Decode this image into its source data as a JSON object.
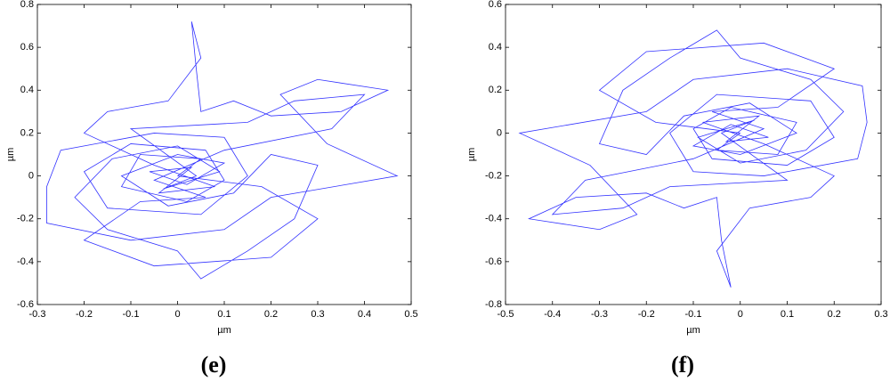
{
  "chart_data": [
    {
      "type": "line",
      "caption": "(e)",
      "x_label": "µm",
      "y_label": "µm",
      "xlim": [
        -0.3,
        0.5
      ],
      "ylim": [
        -0.6,
        0.8
      ],
      "xticks": [
        -0.3,
        -0.2,
        -0.1,
        0,
        0.1,
        0.2,
        0.3,
        0.4,
        0.5
      ],
      "yticks": [
        -0.6,
        -0.4,
        -0.2,
        0,
        0.2,
        0.4,
        0.6,
        0.8
      ],
      "series": [
        {
          "color": "#3333ff",
          "x": [
            0,
            0.05,
            -0.08,
            -0.12,
            0.02,
            0.1,
            0.06,
            -0.1,
            -0.2,
            -0.15,
            0.05,
            0.15,
            0.1,
            -0.05,
            -0.25,
            -0.28,
            -0.28,
            -0.1,
            0.1,
            0.2,
            0.47,
            0.32,
            0.22,
            0.3,
            0.45,
            0.35,
            0.2,
            0.12,
            0.05,
            0.04,
            0.03,
            0.05,
            -0.02,
            -0.15,
            -0.2,
            -0.05,
            0.08,
            -0.04,
            0.03,
            -0.06,
            0.02,
            0.1,
            0,
            -0.12,
            -0.02,
            0.12,
            0.2,
            0.3,
            0.25,
            0.15,
            0.05,
            0,
            -0.15,
            -0.22,
            -0.14,
            0,
            0.09,
            -0.03,
            0.04,
            -0.1,
            0.15,
            0.25,
            0.4,
            0.33,
            0.1,
            -0.05,
            0.06,
            -0.08,
            -0.2,
            -0.05,
            0.2,
            0.3,
            0.18,
            0
          ],
          "values": [
            0,
            0.08,
            0.1,
            -0.05,
            -0.12,
            -0.02,
            0.12,
            0.15,
            0.02,
            -0.15,
            -0.18,
            0,
            0.18,
            0.2,
            0.12,
            -0.05,
            -0.22,
            -0.3,
            -0.25,
            -0.1,
            0,
            0.15,
            0.38,
            0.45,
            0.4,
            0.3,
            0.28,
            0.35,
            0.3,
            0.5,
            0.72,
            0.55,
            0.35,
            0.3,
            0.2,
            0.05,
            -0.05,
            -0.08,
            0.04,
            0.02,
            -0.04,
            0.06,
            0.1,
            0,
            -0.14,
            -0.08,
            0.1,
            0.05,
            -0.2,
            -0.35,
            -0.48,
            -0.35,
            -0.25,
            -0.1,
            0.08,
            0.14,
            0.02,
            -0.06,
            0,
            0.22,
            0.25,
            0.35,
            0.38,
            0.22,
            0.12,
            -0.02,
            -0.1,
            -0.12,
            -0.3,
            -0.42,
            -0.38,
            -0.2,
            -0.05,
            0
          ]
        }
      ]
    },
    {
      "type": "line",
      "caption": "(f)",
      "x_label": "µm",
      "y_label": "µm",
      "xlim": [
        -0.5,
        0.3
      ],
      "ylim": [
        -0.8,
        0.6
      ],
      "xticks": [
        -0.5,
        -0.4,
        -0.3,
        -0.2,
        -0.1,
        0,
        0.1,
        0.2,
        0.3
      ],
      "yticks": [
        -0.8,
        -0.6,
        -0.4,
        -0.2,
        0,
        0.2,
        0.4,
        0.6
      ],
      "series": [
        {
          "color": "#3333ff",
          "x": [
            0,
            -0.05,
            0.08,
            0.12,
            -0.02,
            -0.1,
            -0.06,
            0.1,
            0.2,
            0.15,
            -0.05,
            -0.15,
            -0.1,
            0.05,
            0.25,
            0.27,
            0.26,
            0.1,
            -0.1,
            -0.2,
            -0.47,
            -0.32,
            -0.22,
            -0.3,
            -0.45,
            -0.35,
            -0.2,
            -0.12,
            -0.05,
            -0.04,
            -0.02,
            -0.05,
            0.02,
            0.15,
            0.2,
            0.05,
            -0.08,
            0.04,
            -0.03,
            0.06,
            -0.02,
            -0.1,
            0,
            0.12,
            0.02,
            -0.12,
            -0.2,
            -0.3,
            -0.25,
            -0.15,
            -0.05,
            0,
            0.15,
            0.22,
            0.14,
            0,
            -0.09,
            0.03,
            -0.04,
            0.1,
            -0.15,
            -0.25,
            -0.4,
            -0.33,
            -0.1,
            0.05,
            -0.06,
            0.08,
            0.2,
            0.05,
            -0.2,
            -0.3,
            -0.18,
            0
          ],
          "values": [
            0,
            -0.08,
            -0.1,
            0.05,
            0.12,
            0.02,
            -0.12,
            -0.15,
            -0.02,
            0.15,
            0.18,
            0,
            -0.18,
            -0.2,
            -0.12,
            0.05,
            0.22,
            0.3,
            0.25,
            0.1,
            0,
            -0.15,
            -0.38,
            -0.45,
            -0.4,
            -0.3,
            -0.28,
            -0.35,
            -0.3,
            -0.5,
            -0.72,
            -0.55,
            -0.35,
            -0.3,
            -0.2,
            -0.05,
            0.05,
            0.08,
            -0.04,
            -0.02,
            0.04,
            -0.06,
            -0.1,
            0,
            0.14,
            0.08,
            -0.1,
            -0.05,
            0.2,
            0.35,
            0.48,
            0.35,
            0.25,
            0.1,
            -0.08,
            -0.14,
            -0.02,
            0.06,
            0,
            -0.22,
            -0.25,
            -0.35,
            -0.38,
            -0.22,
            -0.12,
            0.02,
            0.1,
            0.12,
            0.3,
            0.42,
            0.38,
            0.2,
            0.05,
            0
          ]
        }
      ]
    }
  ]
}
